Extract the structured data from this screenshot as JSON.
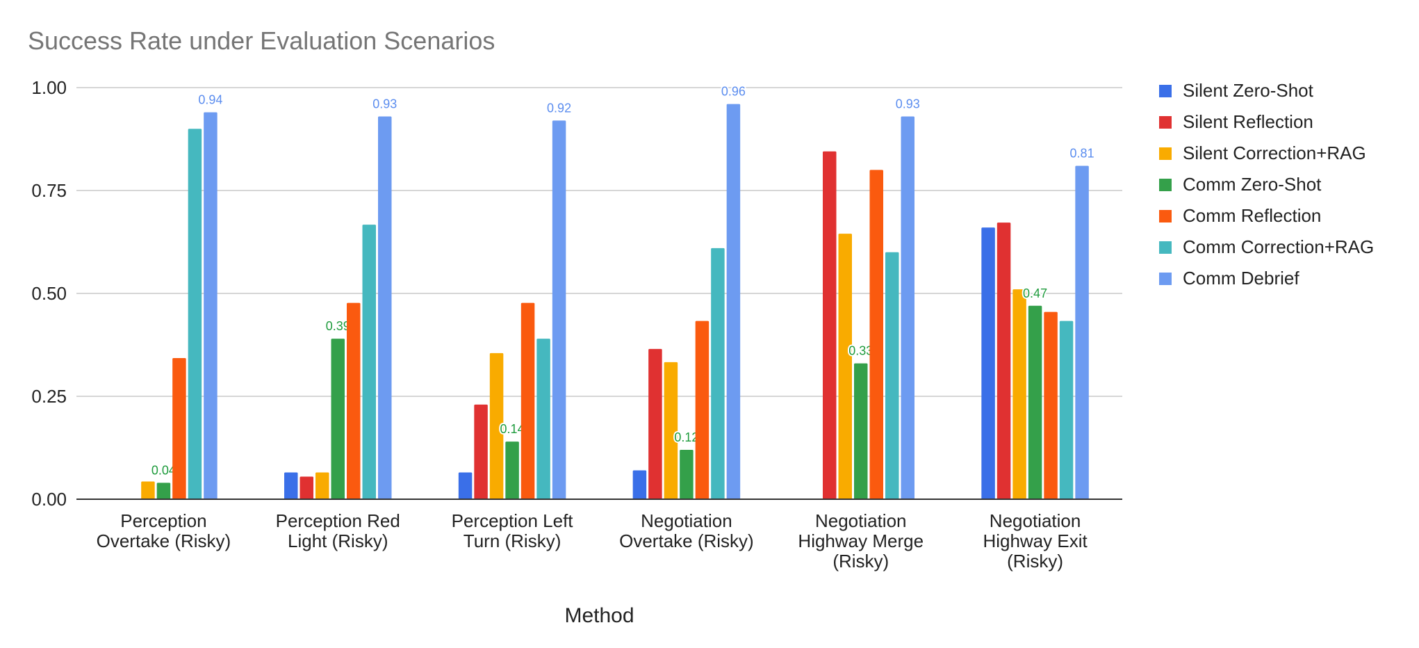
{
  "chart_data": {
    "type": "bar",
    "title": "Success Rate under Evaluation Scenarios",
    "xlabel": "Method",
    "ylabel": "",
    "ylim": [
      0,
      1
    ],
    "yticks": [
      "0.00",
      "0.25",
      "0.50",
      "0.75",
      "1.00"
    ],
    "grid": true,
    "legend_position": "right",
    "categories": [
      "Perception Overtake (Risky)",
      "Perception Red Light (Risky)",
      "Perception Left Turn (Risky)",
      "Negotiation Overtake (Risky)",
      "Negotiation Highway Merge (Risky)",
      "Negotiation Highway Exit (Risky)"
    ],
    "category_lines": [
      [
        "Perception",
        "Overtake (Risky)"
      ],
      [
        "Perception Red",
        "Light (Risky)"
      ],
      [
        "Perception Left",
        "Turn (Risky)"
      ],
      [
        "Negotiation",
        "Overtake (Risky)"
      ],
      [
        "Negotiation",
        "Highway Merge",
        "(Risky)"
      ],
      [
        "Negotiation",
        "Highway Exit",
        "(Risky)"
      ]
    ],
    "series": [
      {
        "name": "Silent Zero-Shot",
        "color": "#3a6fe8",
        "values": [
          0,
          0.065,
          0.065,
          0.07,
          0,
          0.66
        ]
      },
      {
        "name": "Silent Reflection",
        "color": "#e03131",
        "values": [
          0,
          0.055,
          0.23,
          0.365,
          0.845,
          0.672
        ]
      },
      {
        "name": "Silent Correction+RAG",
        "color": "#f9ab00",
        "values": [
          0.043,
          0.065,
          0.355,
          0.333,
          0.645,
          0.51
        ]
      },
      {
        "name": "Comm Zero-Shot",
        "color": "#34a04a",
        "values": [
          0.04,
          0.39,
          0.14,
          0.12,
          0.33,
          0.47
        ],
        "labels": [
          "0.04",
          "0.39",
          "0.14",
          "0.12",
          "0.33",
          "0.47"
        ],
        "label_color": "#1e9b3c"
      },
      {
        "name": "Comm Reflection",
        "color": "#fa5a0f",
        "values": [
          0.343,
          0.477,
          0.477,
          0.433,
          0.8,
          0.455
        ]
      },
      {
        "name": "Comm Correction+RAG",
        "color": "#45b8bf",
        "values": [
          0.9,
          0.667,
          0.39,
          0.61,
          0.6,
          0.433
        ]
      },
      {
        "name": "Comm Debrief",
        "color": "#6d9bf1",
        "values": [
          0.94,
          0.93,
          0.92,
          0.96,
          0.93,
          0.81
        ],
        "labels": [
          "0.94",
          "0.93",
          "0.92",
          "0.96",
          "0.93",
          "0.81"
        ],
        "label_color": "#5b8def"
      }
    ]
  }
}
